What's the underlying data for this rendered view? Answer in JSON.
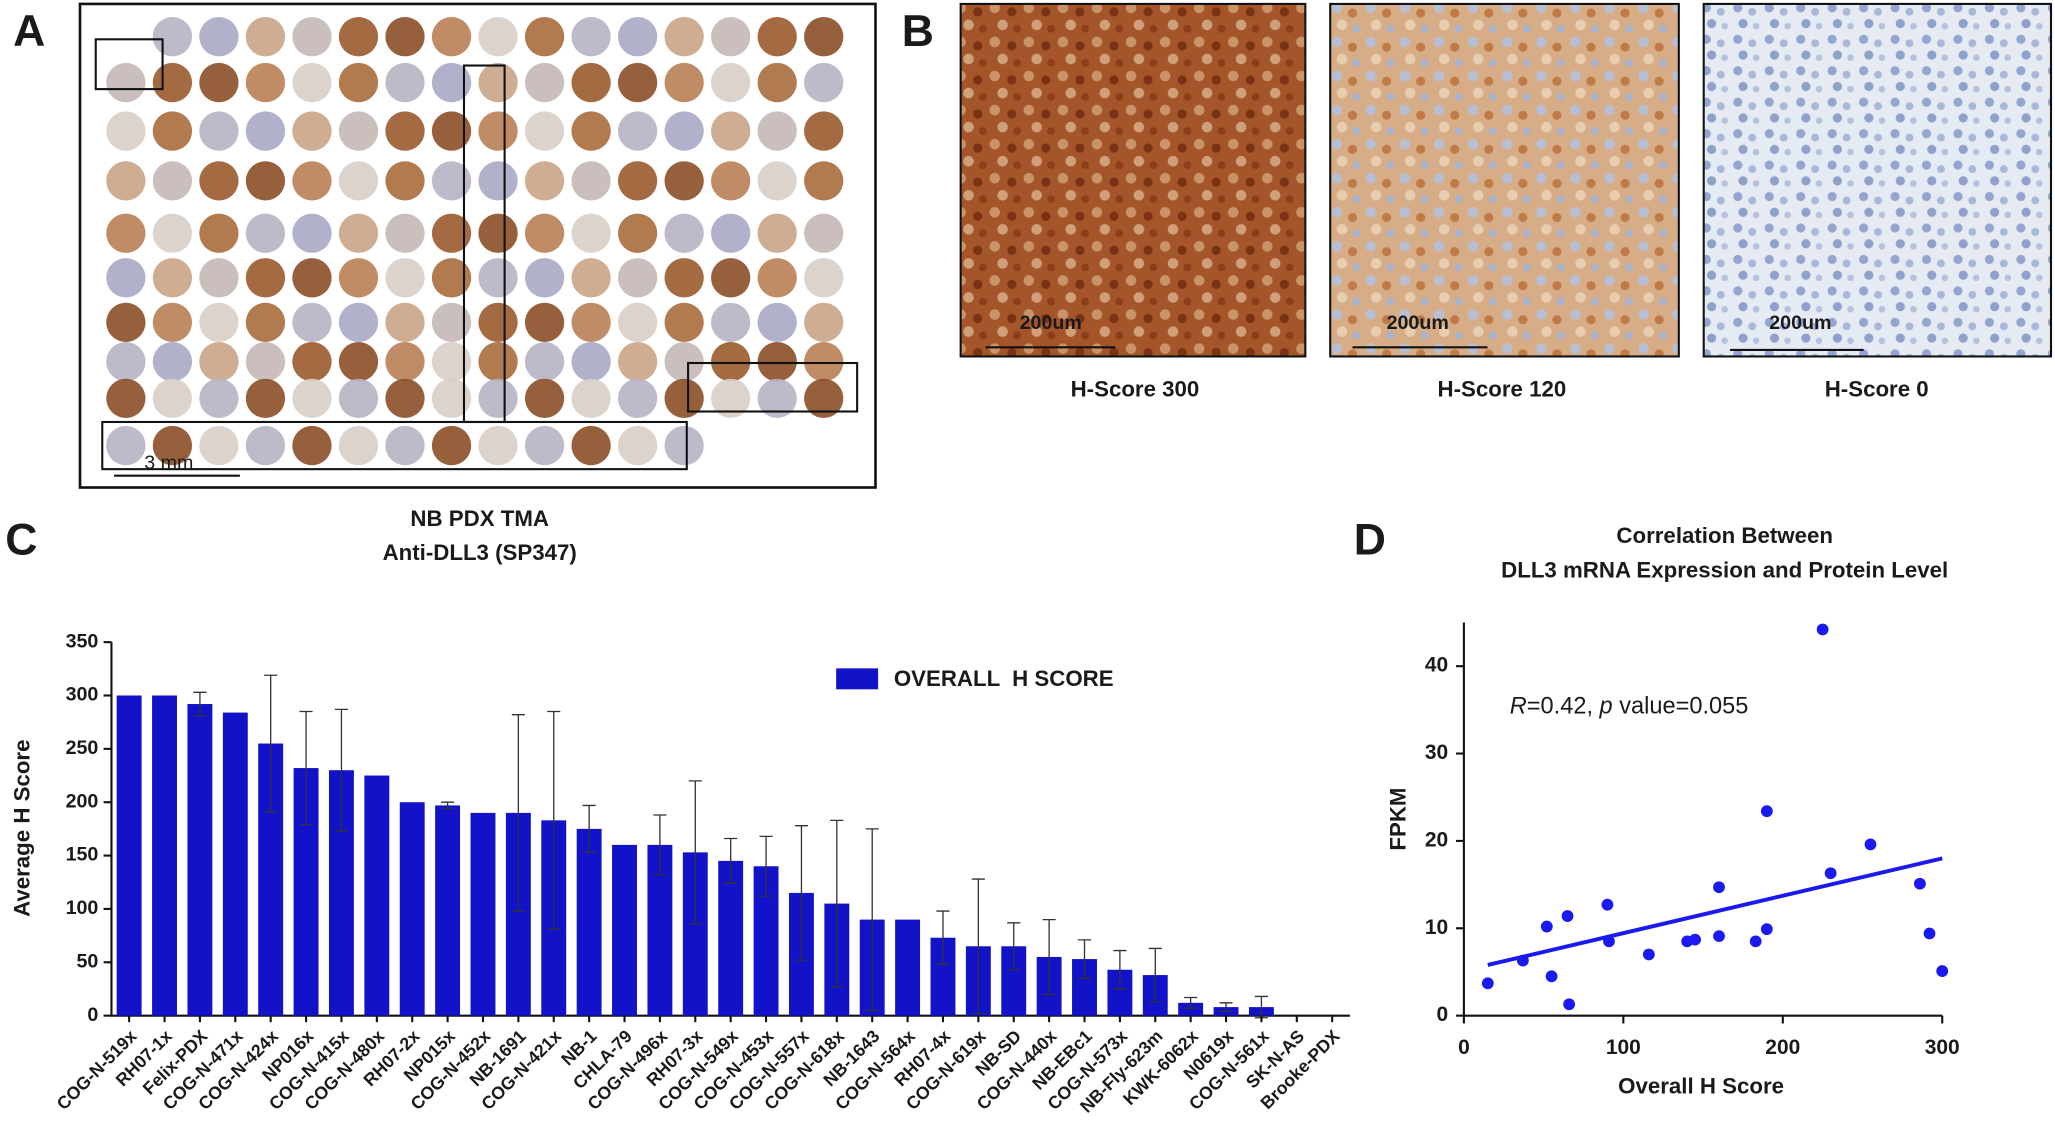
{
  "panels": {
    "A": {
      "label": "A",
      "scale_bar": "3 mm",
      "caption": [
        "NB PDX TMA",
        "Anti-DLL3 (SP347)"
      ]
    },
    "B": {
      "label": "B",
      "scale_bar": "200um",
      "captions": [
        "H-Score 300",
        "H-Score 120",
        "H-Score 0"
      ]
    },
    "C": {
      "label": "C"
    },
    "D": {
      "label": "D"
    }
  },
  "chart_data": [
    {
      "type": "bar",
      "y_label": "Average H Score",
      "categories": [
        "COG-N-519x",
        "RH07-1x",
        "Felix-PDX",
        "COG-N-471x",
        "COG-N-424x",
        "NP016x",
        "COG-N-415x",
        "COG-N-480x",
        "RH07-2x",
        "NP015x",
        "COG-N-452x",
        "NB-1691",
        "COG-N-421x",
        "NB-1",
        "CHLA-79",
        "COG-N-496x",
        "RH07-3x",
        "COG-N-549x",
        "COG-N-453x",
        "COG-N-557x",
        "COG-N-618x",
        "NB-1643",
        "COG-N-564x",
        "RH07-4x",
        "COG-N-619x",
        "NB-SD",
        "COG-N-440x",
        "NB-EBc1",
        "COG-N-573x",
        "NB-Fly-623m",
        "KWK-6062x",
        "N0619x",
        "COG-N-561x",
        "SK-N-AS",
        "Brooke-PDX"
      ],
      "series": [
        {
          "name": "OVERALL  H SCORE",
          "color": "#1212c8",
          "values": [
            300,
            300,
            292,
            284,
            255,
            232,
            230,
            225,
            200,
            197,
            190,
            190,
            183,
            175,
            160,
            160,
            153,
            145,
            140,
            115,
            105,
            90,
            90,
            73,
            65,
            65,
            55,
            53,
            43,
            38,
            12,
            8,
            8,
            0,
            0
          ],
          "errors": [
            null,
            null,
            11,
            null,
            64,
            53,
            57,
            null,
            null,
            3,
            null,
            92,
            102,
            22,
            null,
            28,
            67,
            21,
            28,
            63,
            78,
            85,
            null,
            25,
            63,
            22,
            35,
            18,
            18,
            25,
            5,
            4,
            10,
            null,
            null
          ]
        }
      ],
      "ylim": [
        0,
        350
      ],
      "yticks": [
        0,
        50,
        100,
        150,
        200,
        250,
        300,
        350
      ],
      "legend": "upper right"
    },
    {
      "type": "scatter",
      "title": [
        "Correlation Between",
        "DLL3 mRNA Expression and Protein Level"
      ],
      "x_label": "Overall H Score",
      "y_label": "FPKM",
      "annotation": [
        {
          "text": "R",
          "style": "italic"
        },
        {
          "text": "=0.42, "
        },
        {
          "text": "p",
          "style": "italic"
        },
        {
          "text": " value=0.055"
        }
      ],
      "color": "#1a1af0",
      "x": [
        15,
        37,
        52,
        55,
        65,
        66,
        90,
        91,
        116,
        140,
        145,
        160,
        160,
        183,
        190,
        190,
        225,
        230,
        255,
        286,
        292,
        300
      ],
      "values": [
        3.7,
        6.3,
        10.2,
        4.5,
        11.4,
        1.3,
        12.7,
        8.5,
        7.0,
        8.5,
        8.7,
        14.7,
        9.1,
        8.5,
        23.4,
        9.9,
        44.2,
        16.3,
        19.6,
        15.1,
        9.4,
        5.1
      ],
      "trend": {
        "x": [
          15,
          300
        ],
        "y": [
          5.8,
          18.0
        ]
      },
      "xlim": [
        0,
        300
      ],
      "xticks": [
        0,
        100,
        200,
        300
      ],
      "ylim": [
        0,
        45
      ],
      "yticks": [
        0,
        10,
        20,
        30,
        40
      ]
    }
  ]
}
